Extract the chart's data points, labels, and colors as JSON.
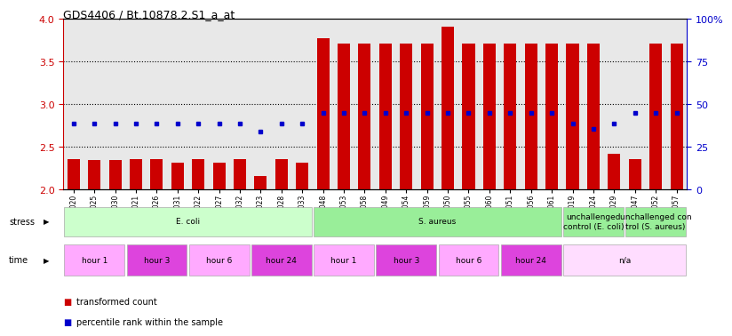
{
  "title": "GDS4406 / Bt.10878.2.S1_a_at",
  "samples": [
    "GSM624020",
    "GSM624025",
    "GSM624030",
    "GSM624021",
    "GSM624026",
    "GSM624031",
    "GSM624022",
    "GSM624027",
    "GSM624032",
    "GSM624023",
    "GSM624028",
    "GSM624033",
    "GSM624048",
    "GSM624053",
    "GSM624058",
    "GSM624049",
    "GSM624054",
    "GSM624059",
    "GSM624050",
    "GSM624055",
    "GSM624060",
    "GSM624051",
    "GSM624056",
    "GSM624061",
    "GSM624019",
    "GSM624024",
    "GSM624029",
    "GSM624047",
    "GSM624052",
    "GSM624057"
  ],
  "bar_values": [
    2.36,
    2.35,
    2.35,
    2.36,
    2.36,
    2.32,
    2.36,
    2.32,
    2.36,
    2.16,
    2.36,
    2.31,
    3.77,
    3.71,
    3.71,
    3.71,
    3.71,
    3.71,
    3.91,
    3.71,
    3.71,
    3.71,
    3.71,
    3.71,
    3.71,
    3.71,
    2.42,
    2.36,
    3.71,
    3.71
  ],
  "percentile_values": [
    2.77,
    2.77,
    2.77,
    2.77,
    2.77,
    2.77,
    2.77,
    2.77,
    2.77,
    2.68,
    2.77,
    2.77,
    2.9,
    2.9,
    2.9,
    2.9,
    2.9,
    2.9,
    2.9,
    2.9,
    2.9,
    2.9,
    2.9,
    2.9,
    2.77,
    2.71,
    2.77,
    2.9,
    2.9,
    2.9
  ],
  "bar_color": "#cc0000",
  "percentile_color": "#0000cc",
  "ylim_left": [
    2.0,
    4.0
  ],
  "ylim_right": [
    0,
    100
  ],
  "yticks_left": [
    2.0,
    2.5,
    3.0,
    3.5,
    4.0
  ],
  "yticks_right": [
    0,
    25,
    50,
    75,
    100
  ],
  "dotted_lines": [
    2.5,
    3.0,
    3.5
  ],
  "stress_groups": [
    {
      "label": "E. coli",
      "start": 0,
      "end": 12,
      "color": "#ccffcc"
    },
    {
      "label": "S. aureus",
      "start": 12,
      "end": 24,
      "color": "#99ee99"
    },
    {
      "label": "unchallenged\ncontrol (E. coli)",
      "start": 24,
      "end": 27,
      "color": "#99ee99"
    },
    {
      "label": "unchallenged con\ntrol (S. aureus)",
      "start": 27,
      "end": 30,
      "color": "#99ee99"
    }
  ],
  "time_groups": [
    {
      "label": "hour 1",
      "start": 0,
      "end": 3,
      "color": "#ffaaff"
    },
    {
      "label": "hour 3",
      "start": 3,
      "end": 6,
      "color": "#dd44dd"
    },
    {
      "label": "hour 6",
      "start": 6,
      "end": 9,
      "color": "#ffaaff"
    },
    {
      "label": "hour 24",
      "start": 9,
      "end": 12,
      "color": "#dd44dd"
    },
    {
      "label": "hour 1",
      "start": 12,
      "end": 15,
      "color": "#ffaaff"
    },
    {
      "label": "hour 3",
      "start": 15,
      "end": 18,
      "color": "#dd44dd"
    },
    {
      "label": "hour 6",
      "start": 18,
      "end": 21,
      "color": "#ffaaff"
    },
    {
      "label": "hour 24",
      "start": 21,
      "end": 24,
      "color": "#dd44dd"
    },
    {
      "label": "n/a",
      "start": 24,
      "end": 30,
      "color": "#ffddff"
    }
  ],
  "legend_items": [
    {
      "label": "transformed count",
      "color": "#cc0000"
    },
    {
      "label": "percentile rank within the sample",
      "color": "#0000cc"
    }
  ],
  "bg_color": "#ffffff",
  "tick_label_color": "#cc0000",
  "right_tick_color": "#0000cc",
  "chart_bg_color": "#e8e8e8"
}
